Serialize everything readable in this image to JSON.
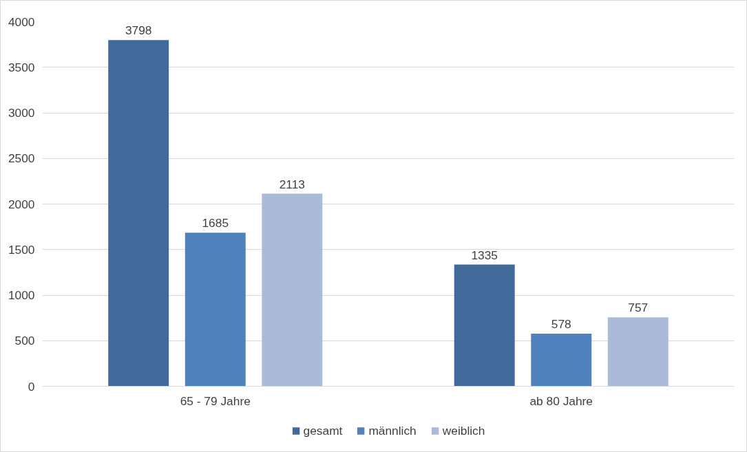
{
  "chart_data": {
    "type": "bar",
    "categories": [
      "65 - 79 Jahre",
      "ab 80 Jahre"
    ],
    "series": [
      {
        "name": "gesamt",
        "color": "#416a9b",
        "values": [
          3798,
          1335
        ]
      },
      {
        "name": "männlich",
        "color": "#4f81bd",
        "values": [
          1685,
          578
        ]
      },
      {
        "name": "weiblich",
        "color": "#abbad8",
        "values": [
          2113,
          757
        ]
      }
    ],
    "ylim": [
      0,
      4000
    ],
    "yticks": [
      0,
      500,
      1000,
      1500,
      2000,
      2500,
      3000,
      3500,
      4000
    ],
    "grid": "y",
    "legend": "bottom",
    "data_labels": true
  }
}
